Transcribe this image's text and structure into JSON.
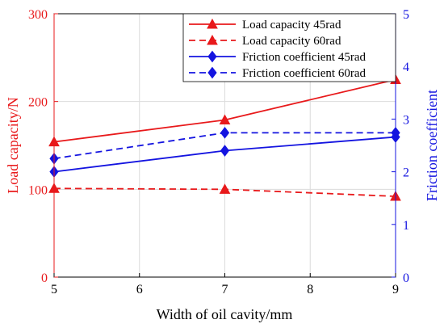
{
  "chart_data": {
    "type": "line",
    "x": [
      5,
      7,
      9
    ],
    "xlabel": "Width of oil cavity/mm",
    "ylabel_left": "Load capacity/N",
    "ylabel_right": "Friction coefficient",
    "xlim": [
      5,
      9
    ],
    "ylim_left": [
      0,
      300
    ],
    "ylim_right": [
      0,
      5
    ],
    "x_ticks": [
      "5",
      "6",
      "7",
      "8",
      "9"
    ],
    "y_ticks_left": [
      "0",
      "100",
      "200",
      "300"
    ],
    "y_ticks_right": [
      "0",
      "1",
      "2",
      "3",
      "4",
      "5"
    ],
    "grid": true,
    "legend_position": "top-right",
    "series": [
      {
        "name": "Load capacity 45rad",
        "axis": "left",
        "marker": "triangle",
        "dash": "solid",
        "color": "#e8191b",
        "values": [
          154,
          179,
          225
        ]
      },
      {
        "name": "Load capacity 60rad",
        "axis": "left",
        "marker": "triangle",
        "dash": "dashed",
        "color": "#e8191b",
        "values": [
          101,
          100,
          92
        ]
      },
      {
        "name": "Friction coefficient 45rad",
        "axis": "right",
        "marker": "diamond",
        "dash": "solid",
        "color": "#1414e0",
        "values": [
          2.0,
          2.4,
          2.66
        ]
      },
      {
        "name": "Friction coefficient 60rad",
        "axis": "right",
        "marker": "diamond",
        "dash": "dashed",
        "color": "#1414e0",
        "values": [
          2.25,
          2.74,
          2.74
        ]
      }
    ]
  }
}
